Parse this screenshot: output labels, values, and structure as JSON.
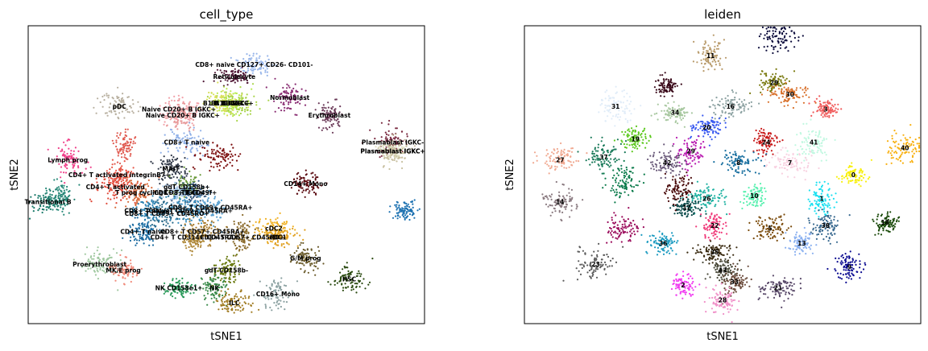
{
  "chart_data": [
    {
      "type": "scatter",
      "title": "cell_type",
      "xlabel": "tSNE1",
      "ylabel": "tSNE2",
      "grid": false,
      "legend": "on data",
      "xlim": [
        0,
        100
      ],
      "ylim": [
        0,
        100
      ],
      "clusters": [
        {
          "label": "CD8+ naive CD127+ CD26- CD101-",
          "x": 57,
          "y": 87,
          "color": "#98b6ea"
        },
        {
          "label": "Reticulocyte",
          "x": 52,
          "y": 83,
          "color": "#521a38"
        },
        {
          "label": "Normoblast",
          "x": 66,
          "y": 76,
          "color": "#8a2e73"
        },
        {
          "label": "B1 B IGKC+",
          "x": 51,
          "y": 74,
          "color": "#b6ea4a"
        },
        {
          "label": "B1 B IGKC+",
          "x": 52,
          "y": 74,
          "color": "#a8d44a"
        },
        {
          "label": "B1 B IGKC+",
          "x": 49,
          "y": 74,
          "color": "#d8e05a"
        },
        {
          "label": "Erythroblast",
          "x": 76,
          "y": 70,
          "color": "#6b3a58"
        },
        {
          "label": "pDC",
          "x": 23,
          "y": 73,
          "color": "#b8b0a0"
        },
        {
          "label": "Naive CD20+ B IGKC+",
          "x": 38,
          "y": 72,
          "color": "#f2a0a8"
        },
        {
          "label": "Naive CD20+ B IGKC+",
          "x": 39,
          "y": 70,
          "color": "#e89a9a"
        },
        {
          "label": "CD8+ T naive",
          "x": 40,
          "y": 61,
          "color": "#8fb0e8"
        },
        {
          "label": "Plasmablast IGKC-",
          "x": 92,
          "y": 61,
          "color": "#7a2a40"
        },
        {
          "label": "Plasmablast IGKC+",
          "x": 92,
          "y": 58,
          "color": "#e0e0c0"
        },
        {
          "label": "Plasmablast IGKC+",
          "x": 92,
          "y": 58,
          "color": "#c8c0a0"
        },
        {
          "label": "Lymph prog",
          "x": 10,
          "y": 55,
          "color": "#f0408a"
        },
        {
          "label": "MAIT",
          "x": 36,
          "y": 52,
          "color": "#303848"
        },
        {
          "label": "CD4+ T activated integrinB7+",
          "x": 23,
          "y": 50,
          "color": "#e8584a"
        },
        {
          "label": "CD4+ T activated",
          "x": 22,
          "y": 46,
          "color": "#e04a3a"
        },
        {
          "label": "gdT CD158b+",
          "x": 40,
          "y": 46,
          "color": "#6a9a3a"
        },
        {
          "label": "T prog cycling",
          "x": 28,
          "y": 44,
          "color": "#d86a3a"
        },
        {
          "label": "CD8+ T TIGIT+",
          "x": 38,
          "y": 44,
          "color": "#a8c8e8"
        },
        {
          "label": "CD8+ T CD49f+",
          "x": 41,
          "y": 44,
          "color": "#3a5a80"
        },
        {
          "label": "CD14+ Mono",
          "x": 70,
          "y": 47,
          "color": "#5a0a10"
        },
        {
          "label": "Transitional B",
          "x": 5,
          "y": 41,
          "color": "#1a7a6a"
        },
        {
          "label": "CD8+ T CD69+ CD45RA+",
          "x": 46,
          "y": 39,
          "color": "#5aa0d0"
        },
        {
          "label": "CD8+ T naive",
          "x": 30,
          "y": 38,
          "color": "#2a80b0"
        },
        {
          "label": "CD8+ T CD69+ CD45RO+",
          "x": 35,
          "y": 37,
          "color": "#2a6a8a"
        },
        {
          "label": "CD4+ T CD69+ CD45RA+",
          "x": 41,
          "y": 38,
          "color": "#3a90c0"
        },
        {
          "label": "CD4+ T naive",
          "x": 29,
          "y": 31,
          "color": "#1a6aa0"
        },
        {
          "label": "CD8+ T CD57+ CD45RA+",
          "x": 44,
          "y": 31,
          "color": "#a87a2a"
        },
        {
          "label": "CD8+ T CD57+ CD45RO+",
          "x": 54,
          "y": 29,
          "color": "#8a6a2a"
        },
        {
          "label": "CD4+ T CD314+ CD45RA+",
          "x": 42,
          "y": 29,
          "color": "#b08a3a"
        },
        {
          "label": "cDC2",
          "x": 62,
          "y": 32,
          "color": "#f0b020"
        },
        {
          "label": "cDC1",
          "x": 63,
          "y": 29,
          "color": "#e0a020"
        },
        {
          "label": "G/M prog",
          "x": 70,
          "y": 22,
          "color": "#6a5a2a"
        },
        {
          "label": "HSC",
          "x": 81,
          "y": 15,
          "color": "#2a4a10"
        },
        {
          "label": "Proerythroblast",
          "x": 18,
          "y": 20,
          "color": "#a0c8a0"
        },
        {
          "label": "MK/E prog",
          "x": 24,
          "y": 18,
          "color": "#f08a7a"
        },
        {
          "label": "gdT CD158b-",
          "x": 50,
          "y": 18,
          "color": "#6a7a10"
        },
        {
          "label": "NK CD158e1+",
          "x": 38,
          "y": 12,
          "color": "#2a9a5a"
        },
        {
          "label": "NK",
          "x": 47,
          "y": 12,
          "color": "#3a8a4a"
        },
        {
          "label": "ILC",
          "x": 52,
          "y": 7,
          "color": "#a07a20"
        },
        {
          "label": "CD16+ Mono",
          "x": 63,
          "y": 10,
          "color": "#8aa0a0"
        }
      ],
      "extra_clusters": [
        {
          "x": 95,
          "y": 38,
          "color": "#1a70b0"
        },
        {
          "x": 8,
          "y": 43,
          "color": "#2a8a7a"
        },
        {
          "x": 24,
          "y": 60,
          "color": "#e05a50"
        },
        {
          "x": 48,
          "y": 56,
          "color": "#7a0a0a"
        }
      ]
    },
    {
      "type": "scatter",
      "title": "leiden",
      "xlabel": "tSNE1",
      "ylabel": "tSNE2",
      "grid": false,
      "legend": "on data",
      "xlim": [
        0,
        100
      ],
      "ylim": [
        0,
        100
      ],
      "clusters": [
        {
          "label": "11",
          "x": 47,
          "y": 90,
          "color": "#b89a6a"
        },
        {
          "label": "29",
          "x": 63,
          "y": 81,
          "color": "#7a7a10"
        },
        {
          "label": "30",
          "x": 67,
          "y": 77,
          "color": "#d8702a"
        },
        {
          "label": "3",
          "x": 76,
          "y": 72,
          "color": "#f05a5a"
        },
        {
          "label": "31",
          "x": 23,
          "y": 73,
          "color": "#e0ecf8"
        },
        {
          "label": "16",
          "x": 52,
          "y": 73,
          "color": "#8aa0a0"
        },
        {
          "label": "34",
          "x": 38,
          "y": 71,
          "color": "#a8c8a0"
        },
        {
          "label": "20",
          "x": 46,
          "y": 66,
          "color": "#3a5af0"
        },
        {
          "label": "19",
          "x": 28,
          "y": 62,
          "color": "#5ac81a"
        },
        {
          "label": "24",
          "x": 61,
          "y": 61,
          "color": "#c81a1a"
        },
        {
          "label": "41",
          "x": 73,
          "y": 61,
          "color": "#c0f8e0"
        },
        {
          "label": "40",
          "x": 96,
          "y": 59,
          "color": "#f8b010"
        },
        {
          "label": "27",
          "x": 9,
          "y": 55,
          "color": "#f0a890"
        },
        {
          "label": "29",
          "x": 42,
          "y": 58,
          "color": "#b81ab0"
        },
        {
          "label": "42",
          "x": 36,
          "y": 54,
          "color": "#6a5a7a"
        },
        {
          "label": "8",
          "x": 54,
          "y": 54,
          "color": "#1a70a0"
        },
        {
          "label": "7",
          "x": 67,
          "y": 54,
          "color": "#f8d0e0"
        },
        {
          "label": "0",
          "x": 83,
          "y": 50,
          "color": "#f8f010"
        },
        {
          "label": "37",
          "x": 20,
          "y": 56,
          "color": "#1a7a5a"
        },
        {
          "label": "14",
          "x": 9,
          "y": 41,
          "color": "#8a7a80"
        },
        {
          "label": "10",
          "x": 58,
          "y": 43,
          "color": "#5af0b0"
        },
        {
          "label": "1",
          "x": 75,
          "y": 42,
          "color": "#1ae0f0"
        },
        {
          "label": "26",
          "x": 46,
          "y": 42,
          "color": "#1ab0a0"
        },
        {
          "label": "12",
          "x": 41,
          "y": 39,
          "color": "#0a4a4a"
        },
        {
          "label": "22",
          "x": 48,
          "y": 33,
          "color": "#f03a7a"
        },
        {
          "label": "5",
          "x": 62,
          "y": 32,
          "color": "#7a4a0a"
        },
        {
          "label": "38",
          "x": 76,
          "y": 33,
          "color": "#3a6a90"
        },
        {
          "label": "18",
          "x": 91,
          "y": 34,
          "color": "#1a4a0a"
        },
        {
          "label": "36",
          "x": 35,
          "y": 27,
          "color": "#1a9ac0"
        },
        {
          "label": "13",
          "x": 70,
          "y": 27,
          "color": "#8ab0f0"
        },
        {
          "label": "23",
          "x": 18,
          "y": 20,
          "color": "#5a5a5a"
        },
        {
          "label": "35",
          "x": 48,
          "y": 24,
          "color": "#3a2a10"
        },
        {
          "label": "43",
          "x": 50,
          "y": 18,
          "color": "#4a4a3a"
        },
        {
          "label": "2",
          "x": 40,
          "y": 13,
          "color": "#f03af0"
        },
        {
          "label": "33",
          "x": 53,
          "y": 14,
          "color": "#6a4a3a"
        },
        {
          "label": "28",
          "x": 50,
          "y": 8,
          "color": "#f090c8"
        },
        {
          "label": "21",
          "x": 64,
          "y": 12,
          "color": "#5a4a6a"
        },
        {
          "label": "9",
          "x": 82,
          "y": 19,
          "color": "#0a0a90"
        }
      ],
      "extra_clusters": [
        {
          "x": 64,
          "y": 96,
          "color": "#0a0a3a"
        },
        {
          "x": 36,
          "y": 80,
          "color": "#3a0a1a"
        },
        {
          "x": 25,
          "y": 32,
          "color": "#9a0a5a"
        },
        {
          "x": 25,
          "y": 47,
          "color": "#0a7a4a"
        },
        {
          "x": 39,
          "y": 46,
          "color": "#4a0a0a"
        }
      ]
    }
  ]
}
